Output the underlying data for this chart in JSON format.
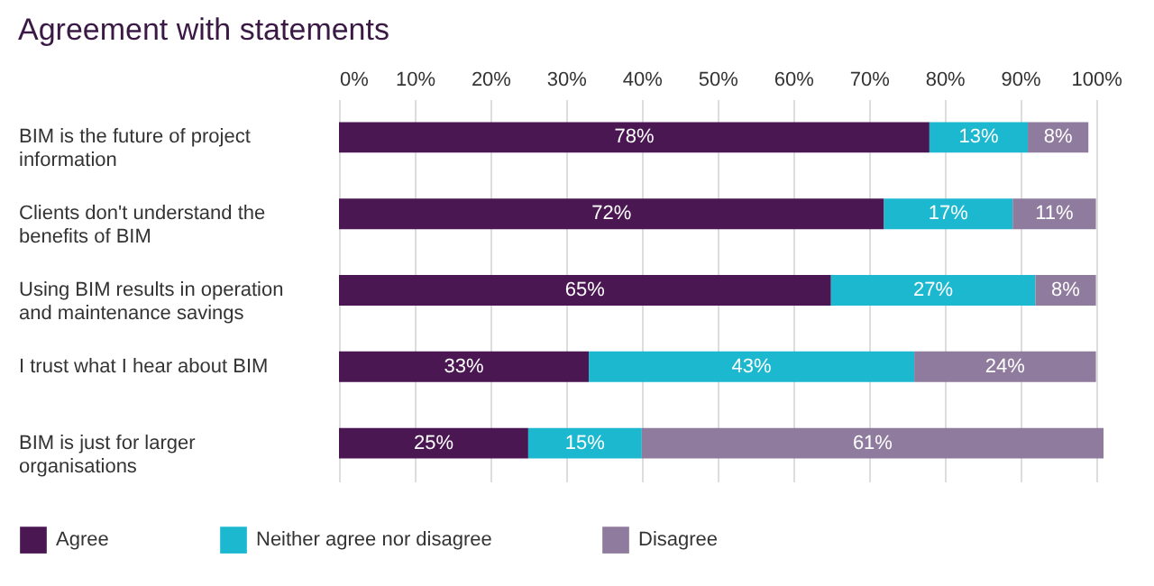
{
  "chart_data": {
    "type": "bar",
    "orientation": "horizontal",
    "stacked": true,
    "title": "Agreement with statements",
    "categories": [
      "BIM is the future of project information",
      "Clients don't understand the benefits of BIM",
      "Using BIM results in operation and maintenance savings",
      "I trust what I hear about BIM",
      "BIM is just for larger organisations"
    ],
    "series": [
      {
        "name": "Agree",
        "color": "#4a1753",
        "values": [
          78,
          72,
          65,
          33,
          25
        ],
        "value_labels": [
          "78%",
          "72%",
          "65%",
          "33%",
          "25%"
        ]
      },
      {
        "name": "Neither agree nor disagree",
        "color": "#1bb8d0",
        "values": [
          13,
          17,
          27,
          43,
          15
        ],
        "value_labels": [
          "13%",
          "17%",
          "27%",
          "43%",
          "15%"
        ]
      },
      {
        "name": "Disagree",
        "color": "#8f7b9d",
        "values": [
          8,
          11,
          8,
          24,
          61
        ],
        "value_labels": [
          "8%",
          "11%",
          "8%",
          "24%",
          "61%"
        ]
      }
    ],
    "xlim": [
      0,
      101
    ],
    "xticks": [
      {
        "value": 0,
        "label": "0%"
      },
      {
        "value": 10,
        "label": "10%"
      },
      {
        "value": 20,
        "label": "20%"
      },
      {
        "value": 30,
        "label": "30%"
      },
      {
        "value": 40,
        "label": "40%"
      },
      {
        "value": 50,
        "label": "50%"
      },
      {
        "value": 60,
        "label": "60%"
      },
      {
        "value": 70,
        "label": "70%"
      },
      {
        "value": 80,
        "label": "80%"
      },
      {
        "value": 90,
        "label": "90%"
      },
      {
        "value": 100,
        "label": "100%"
      }
    ],
    "grid": "x",
    "legend": "bottom left"
  }
}
